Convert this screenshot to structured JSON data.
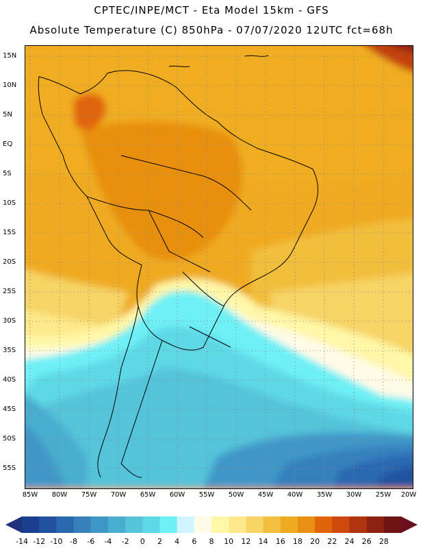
{
  "header": {
    "line1": "CPTEC/INPE/MCT -   Eta Model 15km - GFS",
    "line2": "Absolute Temperature (C) 850hPa - 07/07/2020 12UTC fct=68h"
  },
  "axes": {
    "lat_labels": [
      "15N",
      "10N",
      "5N",
      "EQ",
      "5S",
      "10S",
      "15S",
      "20S",
      "25S",
      "30S",
      "35S",
      "40S",
      "45S",
      "50S",
      "55S"
    ],
    "lon_labels": [
      "85W",
      "80W",
      "75W",
      "70W",
      "65W",
      "60W",
      "55W",
      "50W",
      "45W",
      "40W",
      "35W",
      "30W",
      "25W",
      "20W"
    ]
  },
  "colorbar": {
    "ticks": [
      "-14",
      "-12",
      "-10",
      "-8",
      "-6",
      "-4",
      "-2",
      "0",
      "2",
      "4",
      "6",
      "8",
      "10",
      "12",
      "14",
      "16",
      "18",
      "20",
      "22",
      "24",
      "26",
      "28"
    ],
    "colors": [
      "#1a3f8f",
      "#2152a0",
      "#2a68b0",
      "#3580bd",
      "#3f97c7",
      "#49adcf",
      "#55c3da",
      "#5fd8e6",
      "#6ef0f6",
      "#cff6ff",
      "#fffbe6",
      "#fff7a8",
      "#fde98a",
      "#f7d466",
      "#f2bf3e",
      "#efaa22",
      "#ea8e14",
      "#e0640c",
      "#cd4a0c",
      "#b0340f",
      "#8c2312",
      "#6e1414"
    ],
    "under_color": "#21307e",
    "over_color": "#6b0f1e"
  }
}
